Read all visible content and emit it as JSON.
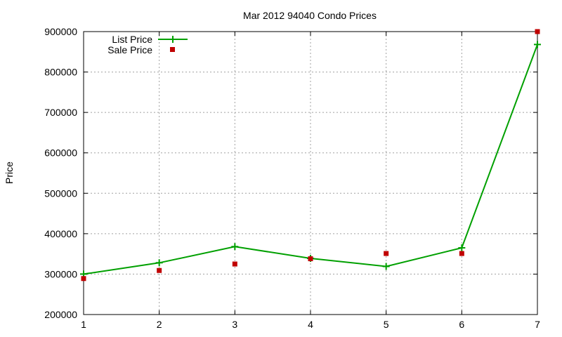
{
  "chart_data": {
    "type": "line",
    "title": "Mar 2012 94040 Condo Prices",
    "xlabel": "",
    "ylabel": "Price",
    "xlim": [
      1,
      7
    ],
    "ylim": [
      200000,
      900000
    ],
    "x_ticks": [
      "1",
      "2",
      "3",
      "4",
      "5",
      "6",
      "7"
    ],
    "y_ticks": [
      "200000",
      "300000",
      "400000",
      "500000",
      "600000",
      "700000",
      "800000",
      "900000"
    ],
    "grid": true,
    "legend_position": "top-left",
    "x": [
      1,
      2,
      3,
      4,
      5,
      6,
      7
    ],
    "series": [
      {
        "name": "List Price",
        "style": "line with + markers",
        "color": "#00a000",
        "values": [
          300000,
          328000,
          368000,
          339000,
          319000,
          365000,
          868000
        ]
      },
      {
        "name": "Sale Price",
        "style": "square markers",
        "color": "#c00000",
        "values": [
          289000,
          309000,
          325000,
          338000,
          351000,
          351000,
          900000
        ]
      }
    ]
  }
}
